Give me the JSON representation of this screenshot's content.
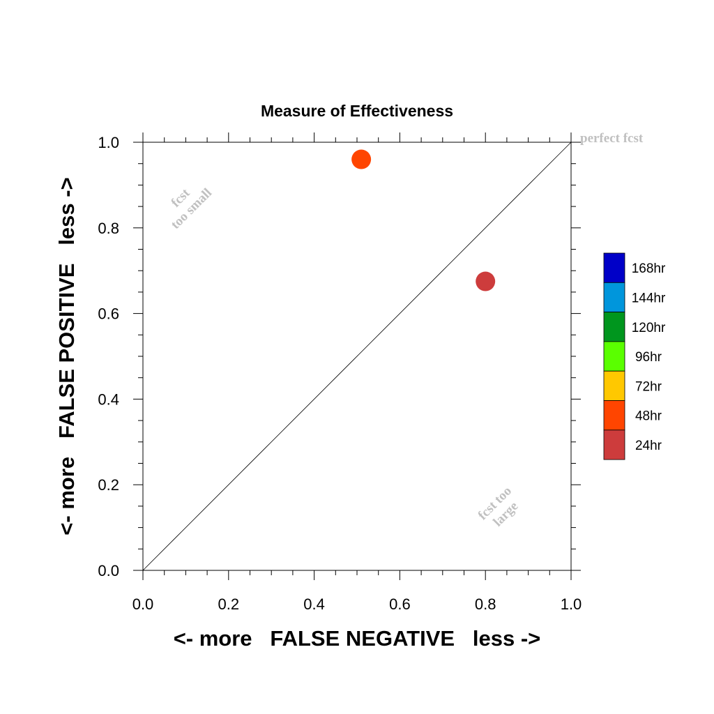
{
  "chart_data": {
    "type": "scatter",
    "title": "Measure of Effectiveness",
    "xlabel": "<- more   FALSE NEGATIVE   less ->",
    "ylabel": "<- more   FALSE POSITIVE   less ->",
    "xlim": [
      0.0,
      1.0
    ],
    "ylim": [
      0.0,
      1.0
    ],
    "x_ticks": [
      "0.0",
      "0.2",
      "0.4",
      "0.6",
      "0.8",
      "1.0"
    ],
    "y_ticks": [
      "0.0",
      "0.2",
      "0.4",
      "0.6",
      "0.8",
      "1.0"
    ],
    "grid": false,
    "reference_line": {
      "from": [
        0,
        0
      ],
      "to": [
        1,
        1
      ]
    },
    "annotations": {
      "perfect": "perfect fcst",
      "too_small_1": "fcst",
      "too_small_2": "too small",
      "too_large_1": "fcst too",
      "too_large_2": "large"
    },
    "points": [
      {
        "label": "48hr",
        "x": 0.51,
        "y": 0.96,
        "color": "#ff4500"
      },
      {
        "label": "24hr",
        "x": 0.8,
        "y": 0.675,
        "color": "#cd3c3c"
      }
    ],
    "legend": {
      "placement": "right",
      "items": [
        {
          "label": "168hr",
          "color": "#0000c8"
        },
        {
          "label": "144hr",
          "color": "#0096dc"
        },
        {
          "label": "120hr",
          "color": "#00961e"
        },
        {
          "label": "96hr",
          "color": "#5aff00"
        },
        {
          "label": "72hr",
          "color": "#ffc800"
        },
        {
          "label": "48hr",
          "color": "#ff4500"
        },
        {
          "label": "24hr",
          "color": "#cd3c3c"
        }
      ]
    }
  }
}
